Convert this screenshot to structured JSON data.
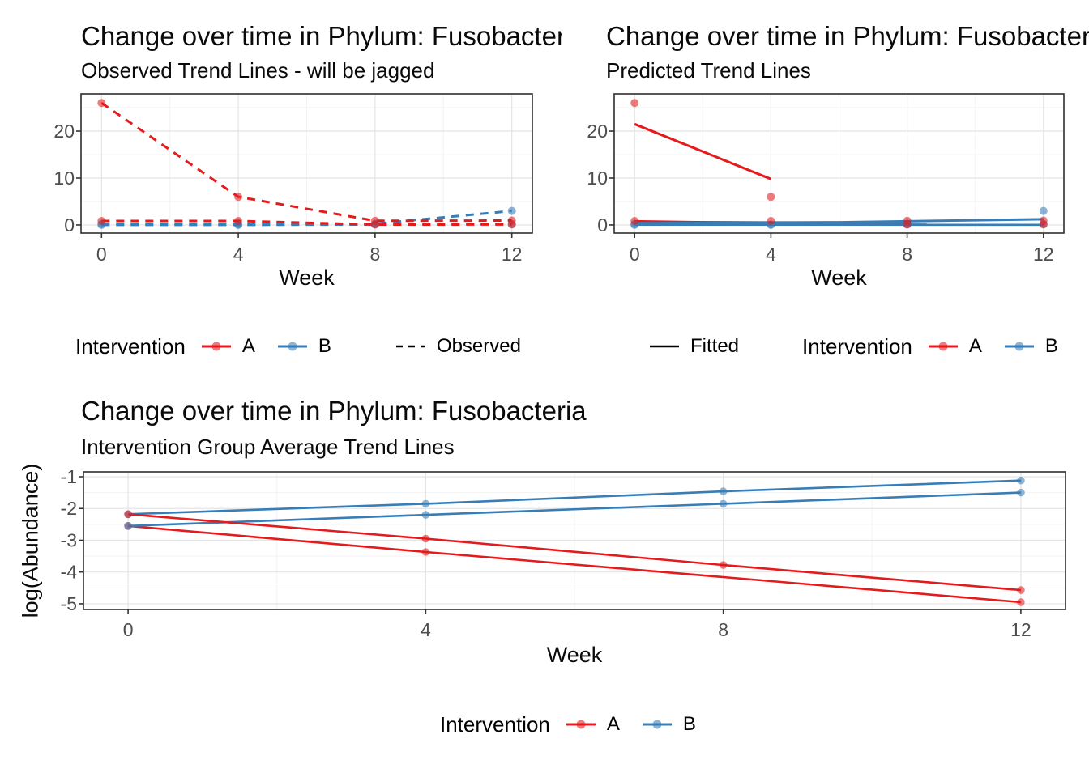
{
  "colors": {
    "red": "#E41A1C",
    "blue": "#377EB8",
    "axis_text": "#4D4D4D",
    "grid_major": "#E4E4E4",
    "grid_minor": "#F3F3F3",
    "panel_border": "#2E2E2E",
    "tick_mark": "#333333"
  },
  "chart_data": [
    {
      "id": "observed",
      "type": "line",
      "title": "Change over time in Phylum: Fusobacteria",
      "subtitle": "Observed Trend Lines - will be jagged",
      "xlabel": "Week",
      "ylabel": "",
      "xlim": [
        -0.6,
        12.6
      ],
      "ylim": [
        -1.73,
        27.94
      ],
      "x_ticks": [
        0,
        4,
        8,
        12
      ],
      "y_ticks": [
        0,
        10,
        20
      ],
      "x_minor": [
        2,
        6,
        10
      ],
      "y_minor": [
        5,
        15,
        25
      ],
      "grid": true,
      "legend_position": "bottom",
      "series": [
        {
          "name": "B-subject-2-observed",
          "group": "B",
          "color": "blue",
          "linetype": "dashed",
          "show_points": true,
          "points": [
            [
              0,
              0.02
            ],
            [
              4,
              0.02
            ],
            [
              8,
              0.1
            ],
            [
              12,
              0.2
            ]
          ]
        },
        {
          "name": "B-subject-1-observed",
          "group": "B",
          "color": "blue",
          "linetype": "dashed",
          "show_points": true,
          "points": [
            [
              0,
              0.2
            ],
            [
              4,
              0.08
            ],
            [
              8,
              0.25
            ],
            [
              12,
              3
            ]
          ]
        },
        {
          "name": "A-subject-2-observed",
          "group": "A",
          "color": "red",
          "linetype": "dashed",
          "show_points": true,
          "points": [
            [
              0,
              0.85
            ],
            [
              4,
              0.85
            ],
            [
              8,
              0.08
            ],
            [
              12,
              0.1
            ]
          ]
        },
        {
          "name": "A-subject-1-observed",
          "group": "A",
          "color": "red",
          "linetype": "dashed",
          "show_points": true,
          "points": [
            [
              0,
              26
            ],
            [
              4,
              6
            ],
            [
              8,
              0.9
            ],
            [
              12,
              0.95
            ]
          ]
        }
      ]
    },
    {
      "id": "fitted",
      "type": "line",
      "title": "Change over time in Phylum: Fusobacteria",
      "subtitle": "Predicted Trend Lines",
      "xlabel": "Week",
      "ylabel": "",
      "xlim": [
        -0.6,
        12.6
      ],
      "ylim": [
        -1.73,
        27.94
      ],
      "x_ticks": [
        0,
        4,
        8,
        12
      ],
      "y_ticks": [
        0,
        10,
        20
      ],
      "x_minor": [
        2,
        6,
        10
      ],
      "y_minor": [
        5,
        15,
        25
      ],
      "grid": true,
      "legend_position": "bottom",
      "series": [
        {
          "name": "A-subject-1-fitted",
          "group": "A",
          "color": "red",
          "linetype": "solid",
          "show_points": false,
          "points": [
            [
              0,
              21.5
            ],
            [
              4,
              9.8
            ]
          ]
        },
        {
          "name": "A-subject-2-fitted",
          "group": "A",
          "color": "red",
          "linetype": "solid",
          "show_points": false,
          "points": [
            [
              0,
              0.78
            ],
            [
              1.8,
              0.6
            ],
            [
              8,
              0.42
            ]
          ]
        },
        {
          "name": "B-subject-1-fitted",
          "group": "B",
          "color": "blue",
          "linetype": "solid",
          "show_points": false,
          "points": [
            [
              0,
              0.4
            ],
            [
              6,
              0.58
            ],
            [
              8,
              0.78
            ],
            [
              10,
              1.02
            ],
            [
              12,
              1.22
            ]
          ]
        },
        {
          "name": "B-subject-2-fitted",
          "group": "B",
          "color": "blue",
          "linetype": "solid",
          "show_points": false,
          "points": [
            [
              0,
              0.08
            ],
            [
              12,
              0.06
            ]
          ]
        },
        {
          "name": "B-subject-2-points",
          "group": "B",
          "color": "blue",
          "linetype": "none",
          "show_points": true,
          "points": [
            [
              0,
              0.02
            ],
            [
              4,
              0.02
            ],
            [
              8,
              0.1
            ],
            [
              12,
              0.2
            ]
          ]
        },
        {
          "name": "B-subject-1-points",
          "group": "B",
          "color": "blue",
          "linetype": "none",
          "show_points": true,
          "points": [
            [
              0,
              0.2
            ],
            [
              4,
              0.08
            ],
            [
              8,
              0.25
            ],
            [
              12,
              3
            ]
          ]
        },
        {
          "name": "A-subject-2-points",
          "group": "A",
          "color": "red",
          "linetype": "none",
          "show_points": true,
          "points": [
            [
              0,
              0.85
            ],
            [
              4,
              0.85
            ],
            [
              8,
              0.08
            ],
            [
              12,
              0.1
            ]
          ]
        },
        {
          "name": "A-subject-1-points",
          "group": "A",
          "color": "red",
          "linetype": "none",
          "show_points": true,
          "points": [
            [
              0,
              26
            ],
            [
              4,
              6
            ],
            [
              8,
              0.9
            ],
            [
              12,
              0.95
            ]
          ]
        }
      ]
    },
    {
      "id": "average",
      "type": "line",
      "title": "Change over time in Phylum: Fusobacteria",
      "subtitle": "Intervention Group Average Trend Lines",
      "xlabel": "Week",
      "ylabel": "log(Abundance)",
      "xlim": [
        -0.6,
        12.6
      ],
      "ylim": [
        -5.18,
        -0.847
      ],
      "x_ticks": [
        0,
        4,
        8,
        12
      ],
      "y_ticks": [
        -1,
        -2,
        -3,
        -4,
        -5
      ],
      "x_minor": [
        2,
        6,
        10
      ],
      "y_minor": [
        -1.5,
        -2.5,
        -3.5,
        -4.5
      ],
      "grid": true,
      "legend_position": "bottom",
      "series": [
        {
          "name": "A-average-lower",
          "group": "A",
          "color": "red",
          "linetype": "solid",
          "show_points": true,
          "point_weeks": [
            0,
            4,
            12
          ],
          "points": [
            [
              0,
              -2.55
            ],
            [
              4,
              -3.37
            ],
            [
              8,
              -4.16
            ],
            [
              12,
              -4.95
            ]
          ]
        },
        {
          "name": "B-average-lower",
          "group": "B",
          "color": "blue",
          "linetype": "solid",
          "show_points": true,
          "points": [
            [
              0,
              -2.55
            ],
            [
              4,
              -2.2
            ],
            [
              8,
              -1.85
            ],
            [
              12,
              -1.5
            ]
          ]
        },
        {
          "name": "B-average-upper",
          "group": "B",
          "color": "blue",
          "linetype": "solid",
          "show_points": true,
          "points": [
            [
              0,
              -2.18
            ],
            [
              4,
              -1.85
            ],
            [
              8,
              -1.46
            ],
            [
              12,
              -1.12
            ]
          ]
        },
        {
          "name": "A-average-upper",
          "group": "A",
          "color": "red",
          "linetype": "solid",
          "show_points": true,
          "points": [
            [
              0,
              -2.18
            ],
            [
              4,
              -2.95
            ],
            [
              8,
              -3.78
            ],
            [
              12,
              -4.57
            ]
          ]
        }
      ]
    }
  ],
  "legends": {
    "observed": {
      "title": "Intervention",
      "items": [
        {
          "label": "A",
          "color": "red"
        },
        {
          "label": "B",
          "color": "blue"
        }
      ],
      "linetype_label": "Observed"
    },
    "fitted": {
      "linetype_label": "Fitted",
      "title": "Intervention",
      "items": [
        {
          "label": "A",
          "color": "red"
        },
        {
          "label": "B",
          "color": "blue"
        }
      ]
    },
    "average": {
      "title": "Intervention",
      "items": [
        {
          "label": "A",
          "color": "red"
        },
        {
          "label": "B",
          "color": "blue"
        }
      ]
    }
  }
}
